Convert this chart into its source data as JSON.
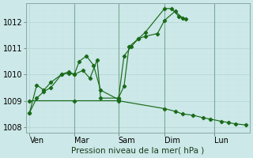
{
  "title": "Pression niveau de la mer( hPa )",
  "bg_color": "#cce8e8",
  "grid_color": "#b8d8d8",
  "grid_color_minor": "#c8e4e4",
  "line_color": "#1a6b1a",
  "ylim": [
    1007.8,
    1012.7
  ],
  "yticks": [
    1008,
    1009,
    1010,
    1011,
    1012
  ],
  "xlim": [
    0,
    315
  ],
  "vlines_x": [
    68,
    130,
    195,
    265
  ],
  "day_tick_x": [
    5,
    68,
    130,
    195,
    265
  ],
  "day_labels": [
    "Ven",
    "Mar",
    "Sam",
    "Dim",
    "Lun"
  ],
  "series1": {
    "x": [
      5,
      15,
      25,
      35,
      50,
      60,
      68,
      75,
      85,
      95,
      105,
      130,
      138,
      148,
      158,
      168,
      195,
      205,
      215,
      225
    ],
    "y": [
      1008.55,
      1009.6,
      1009.4,
      1009.7,
      1010.0,
      1010.1,
      1010.0,
      1010.5,
      1010.7,
      1010.35,
      1009.4,
      1009.05,
      1010.7,
      1011.05,
      1011.35,
      1011.6,
      1012.5,
      1012.5,
      1012.2,
      1012.1
    ]
  },
  "series2": {
    "x": [
      5,
      15,
      25,
      35,
      50,
      60,
      68,
      80,
      90,
      100,
      105,
      130,
      138,
      145,
      158,
      168,
      185,
      195,
      210,
      220
    ],
    "y": [
      1008.55,
      1009.1,
      1009.35,
      1009.5,
      1010.0,
      1010.05,
      1010.0,
      1010.15,
      1009.85,
      1010.55,
      1009.1,
      1009.1,
      1009.55,
      1011.05,
      1011.35,
      1011.45,
      1011.55,
      1012.05,
      1012.4,
      1012.15
    ]
  },
  "series3": {
    "x": [
      5,
      68,
      130,
      195,
      210,
      220,
      235,
      250,
      260,
      275,
      285,
      295,
      310
    ],
    "y": [
      1009.0,
      1009.0,
      1009.0,
      1008.7,
      1008.6,
      1008.5,
      1008.45,
      1008.35,
      1008.3,
      1008.22,
      1008.17,
      1008.12,
      1008.08
    ]
  },
  "font_size_label": 7.5,
  "font_size_tick": 7
}
